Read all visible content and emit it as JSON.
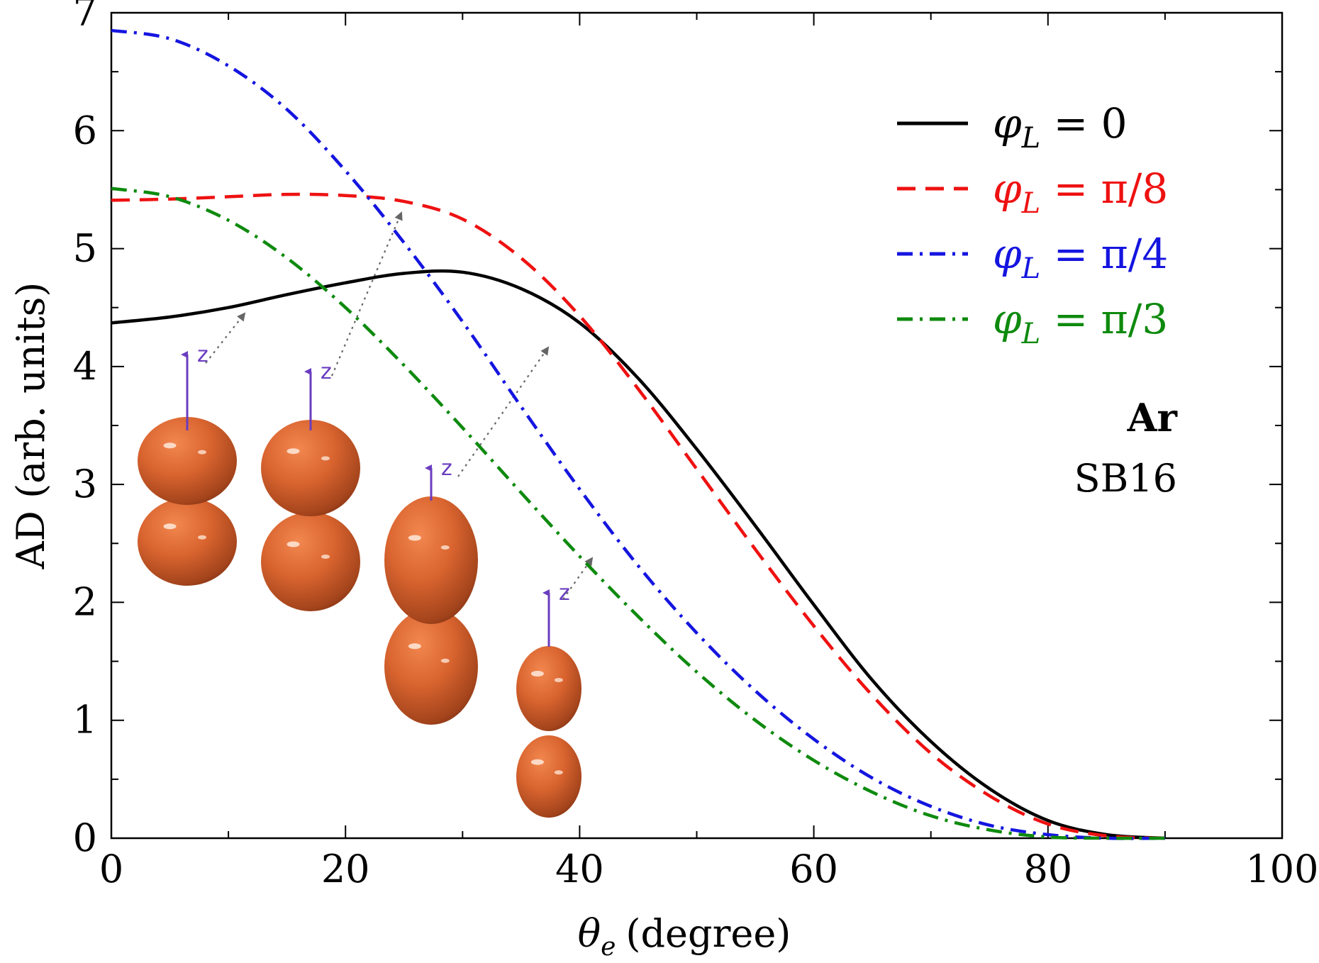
{
  "chart_data": {
    "type": "line",
    "xlabel_symbol": "θ",
    "xlabel_sub": "e",
    "xlabel_text": "(degree)",
    "ylabel": "AD (arb. units)",
    "xlim": [
      0,
      100
    ],
    "ylim": [
      0,
      7
    ],
    "x_ticks": [
      0,
      20,
      40,
      60,
      80,
      100
    ],
    "y_ticks": [
      0,
      1,
      2,
      3,
      4,
      5,
      6,
      7
    ],
    "grid": false,
    "legend_position": "top-right",
    "x": [
      0,
      5,
      10,
      15,
      20,
      25,
      30,
      35,
      40,
      45,
      50,
      55,
      60,
      65,
      70,
      75,
      80,
      85,
      90
    ],
    "series": [
      {
        "name_symbol": "φ",
        "name_sub": "L",
        "name_rest": " = 0",
        "color": "#000000",
        "dash": "solid",
        "values": [
          4.37,
          4.42,
          4.5,
          4.61,
          4.71,
          4.79,
          4.8,
          4.66,
          4.37,
          3.9,
          3.3,
          2.65,
          1.98,
          1.34,
          0.82,
          0.42,
          0.15,
          0.03,
          0.0
        ]
      },
      {
        "name_symbol": "φ",
        "name_sub": "L",
        "name_rest": " = π/8",
        "color": "#ee1111",
        "dash": "long-dash",
        "values": [
          5.41,
          5.42,
          5.44,
          5.46,
          5.45,
          5.4,
          5.25,
          4.92,
          4.43,
          3.81,
          3.13,
          2.45,
          1.8,
          1.21,
          0.72,
          0.36,
          0.12,
          0.02,
          0.0
        ]
      },
      {
        "name_symbol": "φ",
        "name_sub": "L",
        "name_rest": " = π/4",
        "color": "#1515e0",
        "dash": "dash-dot",
        "values": [
          6.85,
          6.78,
          6.55,
          6.18,
          5.66,
          5.05,
          4.38,
          3.66,
          2.96,
          2.31,
          1.74,
          1.25,
          0.84,
          0.51,
          0.27,
          0.11,
          0.03,
          0.0,
          0.0
        ]
      },
      {
        "name_symbol": "φ",
        "name_sub": "L",
        "name_rest": " = π/3",
        "color": "#0e8a0e",
        "dash": "dash-dot",
        "values": [
          5.51,
          5.44,
          5.24,
          4.92,
          4.5,
          4.01,
          3.48,
          2.93,
          2.39,
          1.88,
          1.41,
          1.0,
          0.66,
          0.39,
          0.19,
          0.07,
          0.01,
          0.0,
          0.0
        ]
      }
    ],
    "annotations": {
      "element": "Ar",
      "method": "SB16",
      "axis_label": "z"
    }
  }
}
